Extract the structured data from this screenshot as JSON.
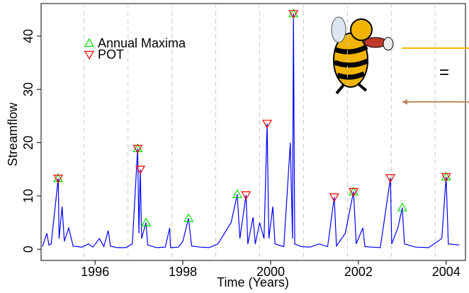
{
  "chart_data": {
    "type": "line",
    "x_label": "Time (Years)",
    "y_label": "Streamflow",
    "xlim": [
      1994.77,
      2004.44
    ],
    "ylim": [
      -2.1,
      46.1
    ],
    "xticks": [
      1996,
      1998,
      2000,
      2002,
      2004
    ],
    "yticks": [
      0,
      10,
      20,
      30,
      40
    ],
    "year_boundaries": [
      1995.75,
      1996.75,
      1997.75,
      1998.75,
      1999.75,
      2000.75,
      2001.75,
      2002.75,
      2003.75
    ],
    "flow": {
      "color": "#0000ff",
      "x": [
        1994.8,
        1994.9,
        1994.95,
        1995.0,
        1995.16,
        1995.18,
        1995.25,
        1995.3,
        1995.4,
        1995.5,
        1995.7,
        1995.85,
        1995.95,
        1996.1,
        1996.2,
        1996.3,
        1996.35,
        1996.5,
        1996.7,
        1996.85,
        1996.97,
        1997.0,
        1997.03,
        1997.06,
        1997.16,
        1997.2,
        1997.4,
        1997.6,
        1997.7,
        1997.72,
        1997.9,
        1998.0,
        1998.13,
        1998.2,
        1998.4,
        1998.6,
        1998.8,
        1998.95,
        1999.1,
        1999.24,
        1999.3,
        1999.44,
        1999.48,
        1999.6,
        1999.65,
        1999.75,
        1999.85,
        1999.92,
        1999.96,
        2000.05,
        2000.1,
        2000.3,
        2000.45,
        2000.5,
        2000.52,
        2000.55,
        2000.7,
        2000.9,
        2001.1,
        2001.3,
        2001.45,
        2001.5,
        2001.7,
        2001.89,
        2001.95,
        2002.1,
        2002.15,
        2002.3,
        2002.5,
        2002.73,
        2002.76,
        2002.9,
        2003.0,
        2003.05,
        2003.3,
        2003.6,
        2003.9,
        2004.0,
        2004.05,
        2004.3
      ],
      "values": [
        0.5,
        3,
        0.8,
        1,
        13.3,
        2,
        8,
        1.5,
        4,
        0.6,
        0.4,
        1,
        0.4,
        2,
        0.5,
        3.5,
        0.6,
        0.3,
        0.3,
        1,
        18.9,
        3,
        15,
        2,
        5,
        0.8,
        0.3,
        0.4,
        4,
        0.3,
        0.4,
        1.5,
        5.8,
        0.6,
        0.4,
        0.3,
        1,
        3,
        5,
        10.3,
        2,
        10.2,
        1,
        6,
        1,
        5,
        2,
        23.6,
        2,
        8,
        1,
        0.5,
        20,
        2,
        44.2,
        1,
        0.5,
        0.4,
        1,
        0.5,
        9.8,
        0.6,
        3,
        10.8,
        1,
        4,
        0.5,
        0.4,
        0.3,
        13.4,
        1,
        4,
        7.8,
        1,
        0.4,
        0.3,
        2,
        13.6,
        1,
        0.8
      ]
    },
    "series": [
      {
        "name": "Annual Maxima",
        "color": "#00dd00",
        "marker": "up",
        "x": [
          1995.16,
          1996.97,
          1997.16,
          1998.13,
          1999.24,
          2000.52,
          2001.89,
          2003.0,
          2004.0
        ],
        "values": [
          13.3,
          18.9,
          5,
          5.8,
          10.3,
          44.2,
          10.8,
          7.8,
          13.6
        ]
      },
      {
        "name": "POT",
        "color": "#ff0000",
        "marker": "down",
        "x": [
          1995.16,
          1996.97,
          1997.03,
          1999.44,
          1999.92,
          2000.52,
          2001.45,
          2001.89,
          2002.73,
          2004.0
        ],
        "values": [
          13.3,
          18.9,
          15,
          10.2,
          23.6,
          44.2,
          9.8,
          10.8,
          13.4,
          13.6
        ]
      }
    ]
  }
}
